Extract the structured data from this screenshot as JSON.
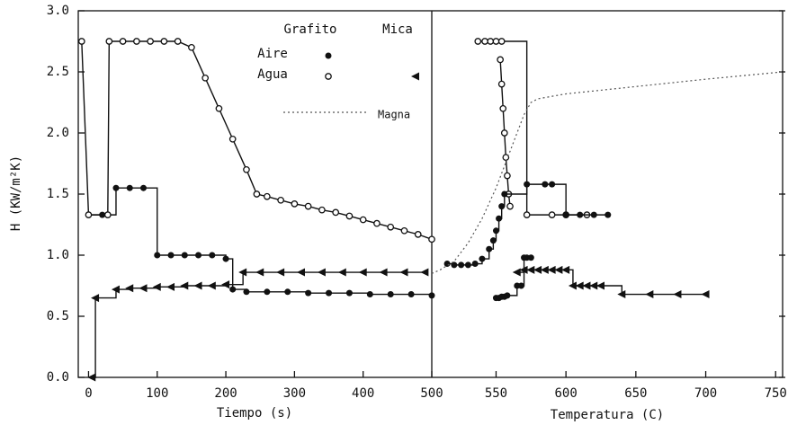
{
  "chart_data": [
    {
      "type": "line",
      "ylabel": "H (KW/m²K)",
      "xlabel": "Tiempo (s)",
      "xlim": [
        -15,
        500
      ],
      "xticks": [
        0,
        100,
        200,
        300,
        400,
        500
      ],
      "ylim": [
        0,
        3
      ],
      "yticks": [
        {
          "value": 0,
          "label": "0.0"
        },
        0.5,
        {
          "value": 1,
          "label": "1.0"
        },
        1.5,
        {
          "value": 2,
          "label": "2.0"
        },
        2.5,
        {
          "value": 3,
          "label": "3.0"
        }
      ],
      "legend": {
        "columns": [
          "Grafito",
          "Mica"
        ],
        "rows": [
          "Aire",
          "Agua"
        ],
        "cells": [
          [
            "filled",
            null
          ],
          [
            "open",
            "triangle"
          ]
        ]
      },
      "series": [
        {
          "marker": "filled",
          "step": true,
          "color": "#111111",
          "x": [
            0,
            20,
            40,
            60,
            80,
            100,
            120,
            140,
            160,
            180,
            200,
            210,
            230,
            260,
            290,
            320,
            350,
            380,
            410,
            440,
            470,
            500
          ],
          "values": [
            1.33,
            1.33,
            1.55,
            1.55,
            1.55,
            1.0,
            1.0,
            1.0,
            1.0,
            1.0,
            0.97,
            0.72,
            0.7,
            0.7,
            0.7,
            0.69,
            0.69,
            0.69,
            0.68,
            0.68,
            0.68,
            0.67
          ]
        },
        {
          "marker": "open",
          "step": false,
          "color": "#111111",
          "x": [
            -10,
            0,
            28,
            30,
            50,
            70,
            90,
            110,
            130,
            150,
            170,
            190,
            210,
            230,
            245,
            260,
            280,
            300,
            320,
            340,
            360,
            380,
            400,
            420,
            440,
            460,
            480,
            500
          ],
          "values": [
            2.75,
            1.33,
            1.33,
            2.75,
            2.75,
            2.75,
            2.75,
            2.75,
            2.75,
            2.7,
            2.45,
            2.2,
            1.95,
            1.7,
            1.5,
            1.48,
            1.45,
            1.42,
            1.4,
            1.37,
            1.35,
            1.32,
            1.29,
            1.26,
            1.23,
            1.2,
            1.17,
            1.13
          ]
        },
        {
          "marker": "triangle",
          "step": true,
          "color": "#111111",
          "x": [
            5,
            10,
            40,
            60,
            80,
            100,
            120,
            140,
            160,
            180,
            200,
            225,
            250,
            280,
            310,
            340,
            370,
            400,
            430,
            460,
            490
          ],
          "values": [
            0.0,
            0.65,
            0.72,
            0.73,
            0.73,
            0.74,
            0.74,
            0.75,
            0.75,
            0.75,
            0.76,
            0.86,
            0.86,
            0.86,
            0.86,
            0.86,
            0.86,
            0.86,
            0.86,
            0.86,
            0.86
          ]
        }
      ]
    },
    {
      "type": "line",
      "xlabel": "Temperatura  (C)",
      "xlim": [
        504,
        755
      ],
      "xticks": [
        550,
        600,
        650,
        700,
        750
      ],
      "ylim": [
        0,
        3
      ],
      "series": [
        {
          "marker": "open",
          "step": true,
          "color": "#111111",
          "x": [
            537,
            542,
            546,
            550,
            554,
            572,
            590,
            600,
            615
          ],
          "values": [
            2.75,
            2.75,
            2.75,
            2.75,
            2.75,
            1.33,
            1.33,
            1.33,
            1.33
          ]
        },
        {
          "marker": "open",
          "step": false,
          "color": "#111111",
          "x": [
            553,
            554,
            555,
            556,
            557,
            558,
            559,
            560
          ],
          "values": [
            2.6,
            2.4,
            2.2,
            2.0,
            1.8,
            1.65,
            1.5,
            1.4
          ]
        },
        {
          "marker": "filled",
          "step": true,
          "color": "#111111",
          "x": [
            515,
            520,
            525,
            530,
            535,
            540,
            545,
            548,
            550,
            552,
            554,
            556,
            572,
            585,
            590,
            600,
            610,
            620,
            630
          ],
          "values": [
            0.93,
            0.92,
            0.92,
            0.92,
            0.93,
            0.97,
            1.05,
            1.12,
            1.2,
            1.3,
            1.4,
            1.5,
            1.58,
            1.58,
            1.58,
            1.33,
            1.33,
            1.33,
            1.33
          ]
        },
        {
          "marker": "filled",
          "step": true,
          "color": "#111111",
          "x": [
            550,
            552,
            554,
            556,
            558,
            565,
            568,
            570,
            572,
            575
          ],
          "values": [
            0.65,
            0.65,
            0.66,
            0.66,
            0.67,
            0.75,
            0.75,
            0.98,
            0.98,
            0.98
          ]
        },
        {
          "marker": "triangle",
          "step": true,
          "color": "#111111",
          "x": [
            565,
            570,
            575,
            580,
            585,
            590,
            595,
            600,
            605,
            610,
            615,
            620,
            625,
            640,
            660,
            680,
            700
          ],
          "values": [
            0.86,
            0.88,
            0.88,
            0.88,
            0.88,
            0.88,
            0.88,
            0.88,
            0.75,
            0.75,
            0.75,
            0.75,
            0.75,
            0.68,
            0.68,
            0.68,
            0.68
          ]
        },
        {
          "name": "Magna",
          "marker": "none",
          "step": false,
          "dash": true,
          "color": "#555555",
          "x": [
            504,
            510,
            520,
            530,
            540,
            550,
            560,
            565,
            570,
            575,
            580,
            600,
            650,
            700,
            755
          ],
          "values": [
            0.85,
            0.88,
            0.95,
            1.1,
            1.3,
            1.55,
            1.85,
            2.0,
            2.15,
            2.25,
            2.28,
            2.32,
            2.38,
            2.44,
            2.5
          ]
        }
      ]
    }
  ]
}
